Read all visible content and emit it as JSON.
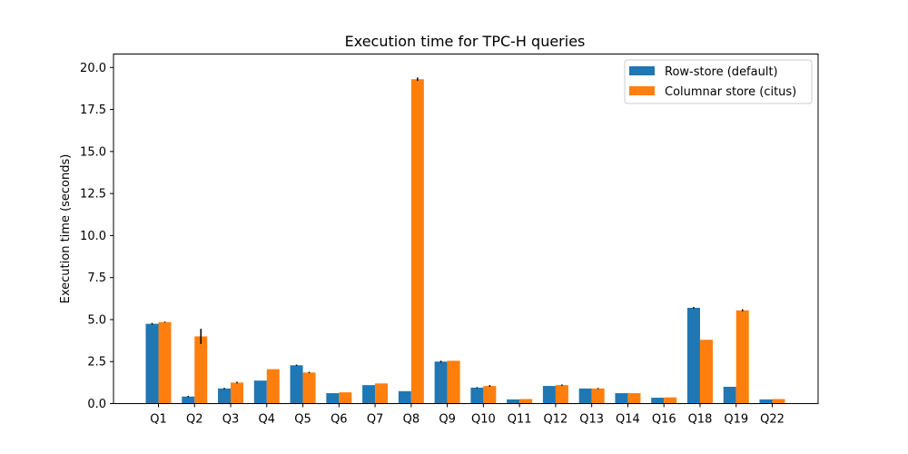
{
  "chart_data": {
    "type": "bar",
    "title": "Execution time for TPC-H queries",
    "xlabel": "",
    "ylabel": "Execution time (seconds)",
    "ylim": [
      0,
      20.8
    ],
    "yticks": [
      "0.0",
      "2.5",
      "5.0",
      "7.5",
      "10.0",
      "12.5",
      "15.0",
      "17.5",
      "20.0"
    ],
    "grid": false,
    "legend_position": "top-right",
    "categories": [
      "Q1",
      "Q2",
      "Q3",
      "Q4",
      "Q5",
      "Q6",
      "Q7",
      "Q8",
      "Q9",
      "Q10",
      "Q11",
      "Q12",
      "Q13",
      "Q14",
      "Q16",
      "Q18",
      "Q19",
      "Q22"
    ],
    "series": [
      {
        "name": "Row-store (default)",
        "color": "#1f77b4",
        "values": [
          4.75,
          0.42,
          0.9,
          1.37,
          2.28,
          0.62,
          1.1,
          0.74,
          2.5,
          0.95,
          0.25,
          1.05,
          0.9,
          0.62,
          0.35,
          5.7,
          1.0,
          0.25
        ],
        "errors": [
          0.05,
          0.04,
          0.04,
          0.0,
          0.04,
          0.0,
          0.0,
          0.0,
          0.05,
          0.03,
          0.0,
          0.0,
          0.0,
          0.0,
          0.0,
          0.05,
          0.0,
          0.0
        ]
      },
      {
        "name": "Columnar store (citus)",
        "color": "#ff7f0e",
        "values": [
          4.85,
          4.0,
          1.25,
          2.05,
          1.85,
          0.67,
          1.2,
          19.3,
          2.55,
          1.05,
          0.27,
          1.1,
          0.9,
          0.62,
          0.37,
          3.8,
          5.55,
          0.27
        ],
        "errors": [
          0.03,
          0.45,
          0.05,
          0.0,
          0.04,
          0.0,
          0.0,
          0.1,
          0.0,
          0.05,
          0.0,
          0.04,
          0.03,
          0.0,
          0.0,
          0.0,
          0.06,
          0.0
        ]
      }
    ]
  }
}
